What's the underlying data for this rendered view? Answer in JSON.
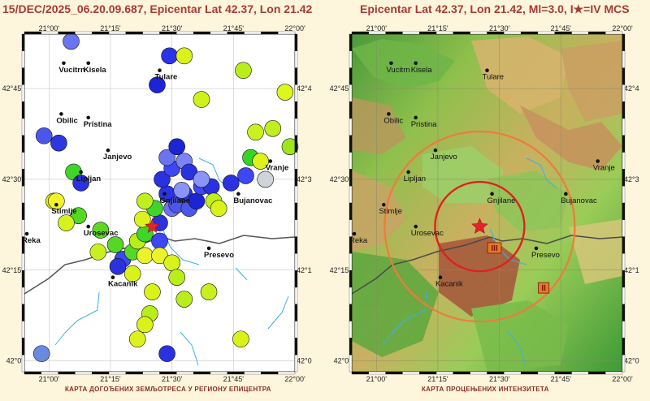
{
  "left_title": "15/DEC/2025_06.20.09.687, Epicentar Lat 42.37, Lon 21.42",
  "right_title": "Epicentar Lat 42.37, Lon 21.42, Ml=3.0, I★=IV MCS",
  "left_caption": "КАРТА ДОГОЂЕНИХ ЗЕМЉОТРЕСА У РЕГИОНУ ЕПИЦЕНТРА",
  "right_caption": "КАРТА ПРОЦЕЊЕНИХ ИНТЕНЗИТЕТА",
  "lon_ticks": [
    "21°00'",
    "21°15'",
    "21°30'",
    "21°45'",
    "22°00'"
  ],
  "lon_values": [
    21.0,
    21.25,
    21.5,
    21.75,
    22.0
  ],
  "lat_ticks": [
    "42°45'",
    "42°30'",
    "42°15'",
    "42°0'"
  ],
  "lat_ticks_right": [
    "42°4",
    "42°3",
    "42°1",
    "42°0"
  ],
  "lat_values": [
    42.75,
    42.5,
    42.25,
    42.0
  ],
  "extent": {
    "lon_min": 20.9,
    "lon_max": 22.0,
    "lat_min": 41.97,
    "lat_max": 42.9
  },
  "epicenter": {
    "lat": 42.37,
    "lon": 21.42
  },
  "cities": [
    {
      "name": "Vucitrn",
      "lon": 21.06,
      "lat": 42.82
    },
    {
      "name": "Kisela",
      "lon": 21.16,
      "lat": 42.82
    },
    {
      "name": "Tulare",
      "lon": 21.45,
      "lat": 42.8
    },
    {
      "name": "Obilic",
      "lon": 21.05,
      "lat": 42.68
    },
    {
      "name": "Pristina",
      "lon": 21.16,
      "lat": 42.67
    },
    {
      "name": "Janjevo",
      "lon": 21.24,
      "lat": 42.58
    },
    {
      "name": "Lipljan",
      "lon": 21.13,
      "lat": 42.52
    },
    {
      "name": "Vranje",
      "lon": 21.9,
      "lat": 42.55
    },
    {
      "name": "Gnjilane",
      "lon": 21.47,
      "lat": 42.46
    },
    {
      "name": "Bujanovac",
      "lon": 21.77,
      "lat": 42.46
    },
    {
      "name": "Stimlje",
      "lon": 21.03,
      "lat": 42.43
    },
    {
      "name": "Reka",
      "lon": 20.91,
      "lat": 42.35
    },
    {
      "name": "Urosevac",
      "lon": 21.16,
      "lat": 42.37
    },
    {
      "name": "Presevo",
      "lon": 21.65,
      "lat": 42.31
    },
    {
      "name": "Kacanik",
      "lon": 21.26,
      "lat": 42.23
    }
  ],
  "quakes": [
    {
      "lon": 21.09,
      "lat": 42.88,
      "c": "#6a74f0"
    },
    {
      "lon": 21.44,
      "lat": 42.76,
      "c": "#1c24d6"
    },
    {
      "lon": 21.49,
      "lat": 42.84,
      "c": "#2b33e8"
    },
    {
      "lon": 21.55,
      "lat": 42.84,
      "c": "#d9f21a"
    },
    {
      "lon": 21.79,
      "lat": 42.8,
      "c": "#b8ee1c"
    },
    {
      "lon": 21.96,
      "lat": 42.74,
      "c": "#ddf61e"
    },
    {
      "lon": 21.62,
      "lat": 42.72,
      "c": "#d0f21c"
    },
    {
      "lon": 21.91,
      "lat": 42.64,
      "c": "#c0ef1e"
    },
    {
      "lon": 21.84,
      "lat": 42.63,
      "c": "#c9f11e"
    },
    {
      "lon": 21.98,
      "lat": 42.59,
      "c": "#9ee51e"
    },
    {
      "lon": 21.82,
      "lat": 42.56,
      "c": "#35d622"
    },
    {
      "lon": 21.86,
      "lat": 42.55,
      "c": "#ddf21c"
    },
    {
      "lon": 21.88,
      "lat": 42.5,
      "c": "#cfd4da"
    },
    {
      "lon": 21.8,
      "lat": 42.51,
      "c": "#3d47f3"
    },
    {
      "lon": 21.74,
      "lat": 42.49,
      "c": "#2b33e0"
    },
    {
      "lon": 20.98,
      "lat": 42.62,
      "c": "#4a57ea"
    },
    {
      "lon": 21.04,
      "lat": 42.6,
      "c": "#2d37e0"
    },
    {
      "lon": 21.1,
      "lat": 42.52,
      "c": "#3ed628"
    },
    {
      "lon": 21.13,
      "lat": 42.49,
      "c": "#2a32e0"
    },
    {
      "lon": 21.02,
      "lat": 42.44,
      "c": "#d4f21c"
    },
    {
      "lon": 21.03,
      "lat": 42.44,
      "c": "#f2f22a"
    },
    {
      "lon": 21.12,
      "lat": 42.4,
      "c": "#55d824"
    },
    {
      "lon": 21.07,
      "lat": 42.38,
      "c": "#d4f21c"
    },
    {
      "lon": 21.21,
      "lat": 42.36,
      "c": "#5ed824"
    },
    {
      "lon": 21.2,
      "lat": 42.3,
      "c": "#c8f01e"
    },
    {
      "lon": 21.27,
      "lat": 42.32,
      "c": "#55d824"
    },
    {
      "lon": 21.3,
      "lat": 42.28,
      "c": "#3d47f3"
    },
    {
      "lon": 21.34,
      "lat": 42.3,
      "c": "#55d824"
    },
    {
      "lon": 21.39,
      "lat": 42.29,
      "c": "#e9f22a"
    },
    {
      "lon": 21.28,
      "lat": 42.26,
      "c": "#2a32e0"
    },
    {
      "lon": 21.34,
      "lat": 42.24,
      "c": "#d9f21a"
    },
    {
      "lon": 21.36,
      "lat": 42.33,
      "c": "#b8ee1c"
    },
    {
      "lon": 21.39,
      "lat": 42.35,
      "c": "#3ed628"
    },
    {
      "lon": 21.45,
      "lat": 42.33,
      "c": "#3d47f3"
    },
    {
      "lon": 21.45,
      "lat": 42.38,
      "c": "#2a32e0"
    },
    {
      "lon": 21.43,
      "lat": 42.42,
      "c": "#3ed628"
    },
    {
      "lon": 21.39,
      "lat": 42.44,
      "c": "#c0ef1e"
    },
    {
      "lon": 21.38,
      "lat": 42.39,
      "c": "#ddf21c"
    },
    {
      "lon": 21.5,
      "lat": 42.42,
      "c": "#6a74f0"
    },
    {
      "lon": 21.48,
      "lat": 42.46,
      "c": "#2b33e8"
    },
    {
      "lon": 21.52,
      "lat": 42.43,
      "c": "#4a57ea"
    },
    {
      "lon": 21.55,
      "lat": 42.46,
      "c": "#2a32e0"
    },
    {
      "lon": 21.57,
      "lat": 42.42,
      "c": "#4a57ea"
    },
    {
      "lon": 21.6,
      "lat": 42.44,
      "c": "#1c24d6"
    },
    {
      "lon": 21.62,
      "lat": 42.48,
      "c": "#3d47f3"
    },
    {
      "lon": 21.46,
      "lat": 42.5,
      "c": "#2a32e0"
    },
    {
      "lon": 21.5,
      "lat": 42.53,
      "c": "#3d47f3"
    },
    {
      "lon": 21.48,
      "lat": 42.56,
      "c": "#6a74f0"
    },
    {
      "lon": 21.55,
      "lat": 42.55,
      "c": "#7a84f2"
    },
    {
      "lon": 21.52,
      "lat": 42.59,
      "c": "#1c24d6"
    },
    {
      "lon": 21.57,
      "lat": 42.52,
      "c": "#2a32e0"
    },
    {
      "lon": 21.66,
      "lat": 42.48,
      "c": "#2a32e0"
    },
    {
      "lon": 21.67,
      "lat": 42.44,
      "c": "#c0ef1e"
    },
    {
      "lon": 21.69,
      "lat": 42.42,
      "c": "#d9f21a"
    },
    {
      "lon": 21.54,
      "lat": 42.47,
      "c": "#8a94f6"
    },
    {
      "lon": 21.62,
      "lat": 42.5,
      "c": "#8a94f6"
    },
    {
      "lon": 21.45,
      "lat": 42.29,
      "c": "#e9f22a"
    },
    {
      "lon": 21.5,
      "lat": 42.27,
      "c": "#d9f21a"
    },
    {
      "lon": 21.52,
      "lat": 42.23,
      "c": "#b8ee1c"
    },
    {
      "lon": 21.42,
      "lat": 42.19,
      "c": "#d9f21a"
    },
    {
      "lon": 21.41,
      "lat": 42.13,
      "c": "#b8ee1c"
    },
    {
      "lon": 21.39,
      "lat": 42.1,
      "c": "#d9f21a"
    },
    {
      "lon": 21.36,
      "lat": 42.06,
      "c": "#ddf21c"
    },
    {
      "lon": 21.48,
      "lat": 42.02,
      "c": "#2a32e0"
    },
    {
      "lon": 21.78,
      "lat": 42.06,
      "c": "#d9f21a"
    },
    {
      "lon": 21.65,
      "lat": 42.19,
      "c": "#c8f01e"
    },
    {
      "lon": 21.55,
      "lat": 42.17,
      "c": "#b8ee1c"
    },
    {
      "lon": 20.97,
      "lat": 42.02,
      "c": "#6a8ae0"
    }
  ],
  "intensity_labels": [
    {
      "text": "III",
      "lon": 21.48,
      "lat": 42.31
    },
    {
      "text": "II",
      "lon": 21.68,
      "lat": 42.2
    }
  ]
}
